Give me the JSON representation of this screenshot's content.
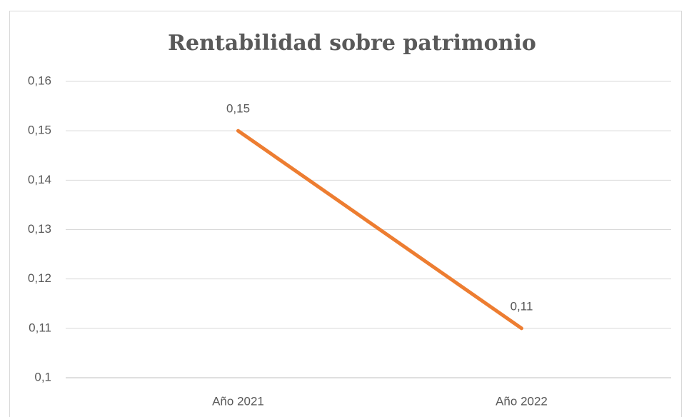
{
  "chart_data": {
    "type": "line",
    "title": "Rentabilidad sobre patrimonio",
    "categories": [
      "Año 2021",
      "Año 2022"
    ],
    "values": [
      0.15,
      0.11
    ],
    "value_labels": [
      "0,15",
      "0,11"
    ],
    "color": "#ed7d31",
    "ylim": [
      0.1,
      0.16
    ],
    "yticks": [
      {
        "value": 0.1,
        "label": "0,1"
      },
      {
        "value": 0.11,
        "label": "0,11"
      },
      {
        "value": 0.12,
        "label": "0,12"
      },
      {
        "value": 0.13,
        "label": "0,13"
      },
      {
        "value": 0.14,
        "label": "0,14"
      },
      {
        "value": 0.15,
        "label": "0,15"
      },
      {
        "value": 0.16,
        "label": "0,16"
      }
    ],
    "grid": true
  }
}
